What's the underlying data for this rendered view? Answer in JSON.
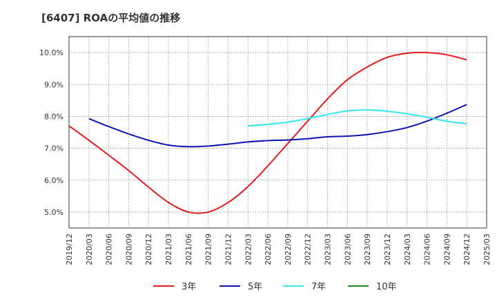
{
  "chart_data": {
    "type": "line",
    "title": "[6407]  ROAの平均値の推移",
    "xlabel": "",
    "ylabel": "",
    "x_ticks": [
      "2019/12",
      "2020/03",
      "2020/06",
      "2020/09",
      "2020/12",
      "2021/03",
      "2021/06",
      "2021/09",
      "2021/12",
      "2022/03",
      "2022/06",
      "2022/09",
      "2022/12",
      "2023/03",
      "2023/06",
      "2023/09",
      "2023/12",
      "2024/03",
      "2024/06",
      "2024/09",
      "2024/12",
      "2025/03"
    ],
    "y_ticks": [
      5.0,
      6.0,
      7.0,
      8.0,
      9.0,
      10.0
    ],
    "y_tick_labels": [
      "5.0%",
      "6.0%",
      "7.0%",
      "8.0%",
      "9.0%",
      "10.0%"
    ],
    "ylim": [
      4.5,
      10.5
    ],
    "grid": true,
    "legend_position": "bottom",
    "series": [
      {
        "name": "3年",
        "color": "#e31a1c",
        "x": [
          "2019/12",
          "2020/03",
          "2020/06",
          "2020/09",
          "2020/12",
          "2021/03",
          "2021/06",
          "2021/09",
          "2021/12",
          "2022/03",
          "2022/06",
          "2022/09",
          "2022/12",
          "2023/03",
          "2023/06",
          "2023/09",
          "2023/12",
          "2024/03",
          "2024/06",
          "2024/09",
          "2024/12"
        ],
        "values": [
          7.7,
          7.25,
          6.78,
          6.3,
          5.78,
          5.3,
          5.0,
          5.0,
          5.3,
          5.8,
          6.45,
          7.15,
          7.85,
          8.55,
          9.15,
          9.55,
          9.85,
          9.98,
          10.0,
          9.93,
          9.77
        ]
      },
      {
        "name": "5年",
        "color": "#0a14b4",
        "x": [
          "2020/03",
          "2020/06",
          "2020/09",
          "2020/12",
          "2021/03",
          "2021/06",
          "2021/09",
          "2021/12",
          "2022/03",
          "2022/06",
          "2022/09",
          "2022/12",
          "2023/03",
          "2023/06",
          "2023/09",
          "2023/12",
          "2024/03",
          "2024/06",
          "2024/09",
          "2024/12"
        ],
        "values": [
          7.93,
          7.68,
          7.45,
          7.25,
          7.1,
          7.05,
          7.07,
          7.13,
          7.2,
          7.24,
          7.26,
          7.3,
          7.36,
          7.38,
          7.43,
          7.52,
          7.65,
          7.85,
          8.1,
          8.37
        ]
      },
      {
        "name": "7年",
        "color": "#33e6ee",
        "x": [
          "2022/03",
          "2022/06",
          "2022/09",
          "2022/12",
          "2023/03",
          "2023/06",
          "2023/09",
          "2023/12",
          "2024/03",
          "2024/06",
          "2024/09",
          "2024/12"
        ],
        "values": [
          7.7,
          7.75,
          7.82,
          7.93,
          8.06,
          8.17,
          8.2,
          8.16,
          8.08,
          7.97,
          7.85,
          7.77
        ]
      },
      {
        "name": "10年",
        "color": "#1a8c1a",
        "x": [],
        "values": []
      }
    ]
  }
}
